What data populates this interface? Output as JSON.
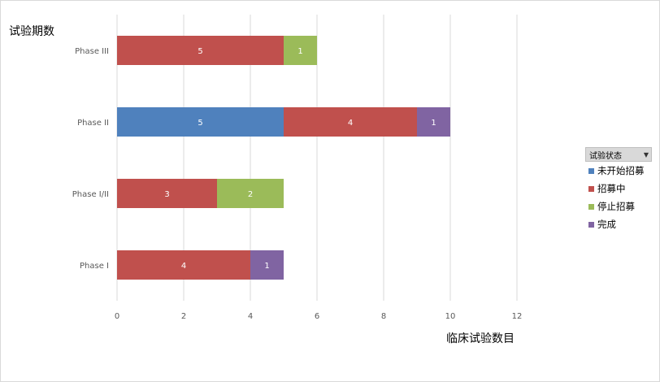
{
  "chart_data": {
    "type": "bar",
    "orientation": "horizontal",
    "stacked": true,
    "categories": [
      "Phase III",
      "Phase II",
      "Phase I/II",
      "Phase I"
    ],
    "series": [
      {
        "name": "未开始招募",
        "color": "#4f81bd",
        "values": [
          0,
          5,
          0,
          0
        ]
      },
      {
        "name": "招募中",
        "color": "#c0504d",
        "values": [
          5,
          4,
          3,
          4
        ]
      },
      {
        "name": "停止招募",
        "color": "#9bbb59",
        "values": [
          1,
          0,
          2,
          0
        ]
      },
      {
        "name": "完成",
        "color": "#8064a2",
        "values": [
          0,
          1,
          0,
          1
        ]
      }
    ],
    "xlabel": "临床试验数目",
    "ylabel": "试验期数",
    "xlim": [
      0,
      12
    ],
    "xticks": [
      0,
      2,
      4,
      6,
      8,
      10,
      12
    ],
    "grid": "vertical",
    "legend": {
      "position": "right",
      "title": "试验状态"
    }
  }
}
